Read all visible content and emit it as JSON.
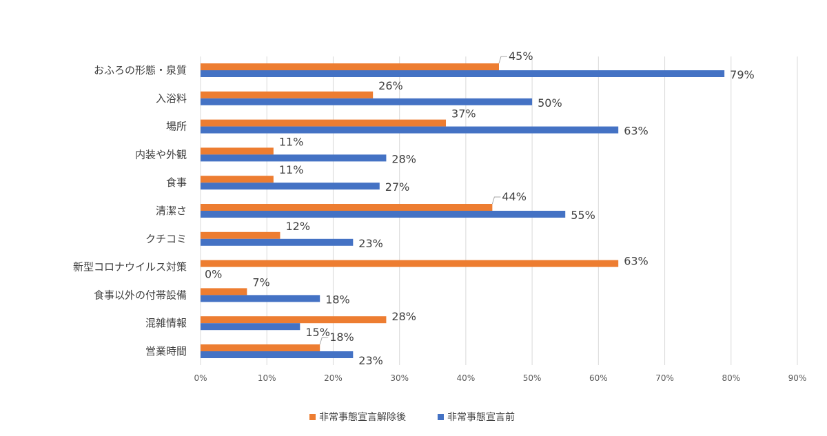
{
  "chart_data": {
    "type": "bar",
    "orientation": "horizontal",
    "categories": [
      "おふろの形態・泉質",
      "入浴料",
      "場所",
      "内装や外観",
      "食事",
      "清潔さ",
      "クチコミ",
      "新型コロナウイルス対策",
      "食事以外の付帯設備",
      "混雑情報",
      "営業時間"
    ],
    "series": [
      {
        "name": "非常事態宣言解除後",
        "color": "#ED7D31",
        "values": [
          45,
          26,
          37,
          11,
          11,
          44,
          12,
          63,
          7,
          28,
          18
        ],
        "labels": [
          "45%",
          "26%",
          "37%",
          "11%",
          "11%",
          "44%",
          "12%",
          "63%",
          "7%",
          "28%",
          "18%"
        ]
      },
      {
        "name": "非常事態宣言前",
        "color": "#4472C4",
        "values": [
          79,
          50,
          63,
          28,
          27,
          55,
          23,
          0,
          18,
          15,
          23
        ],
        "labels": [
          "79%",
          "50%",
          "63%",
          "28%",
          "27%",
          "55%",
          "23%",
          "0%",
          "18%",
          "15%",
          "23%"
        ]
      }
    ],
    "x_ticks": [
      "0%",
      "10%",
      "20%",
      "30%",
      "40%",
      "50%",
      "60%",
      "70%",
      "80%",
      "90%"
    ],
    "xlim": [
      0,
      90
    ],
    "grid": true,
    "legend_position": "bottom"
  }
}
